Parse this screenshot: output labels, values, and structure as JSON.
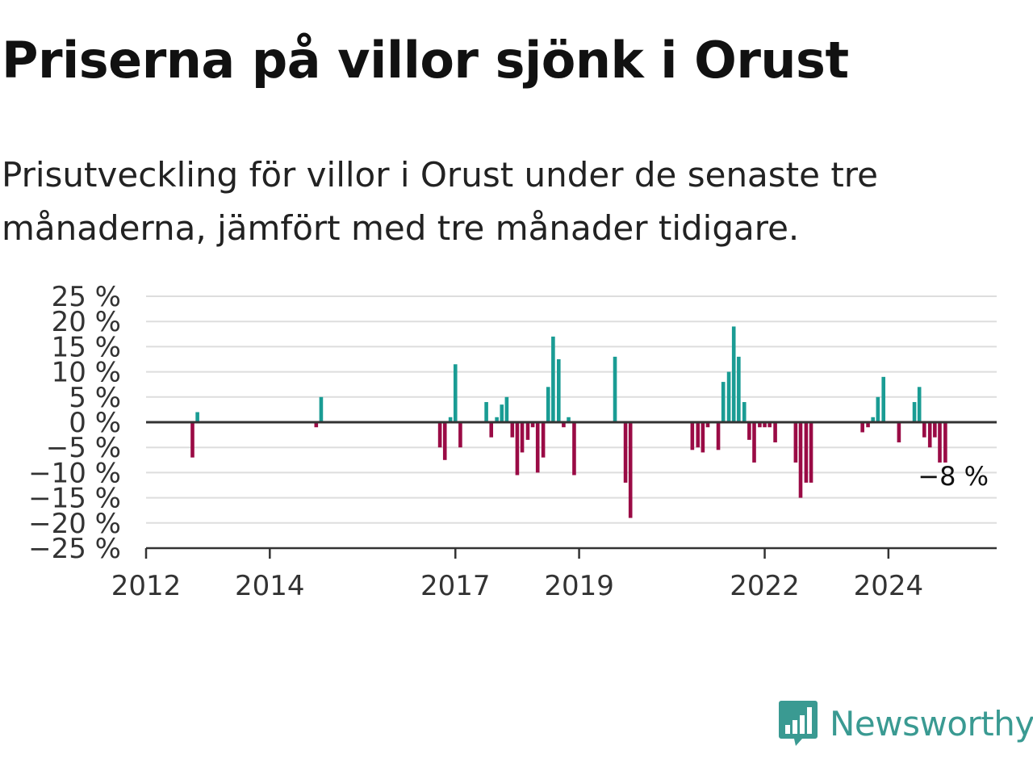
{
  "header": {
    "title": "Priserna på villor sjönk i Orust",
    "subtitle": "Prisutveckling för villor i Orust under de senaste tre månaderna, jämfört med tre månader tidigare."
  },
  "brand": {
    "name": "Newsworthy",
    "logo_icon": "bar-chart-speech-bubble-icon"
  },
  "colors": {
    "positive": "#1a9c94",
    "negative": "#9a0b45",
    "grid": "#dddddd",
    "axis": "#333333"
  },
  "chart_data": {
    "type": "bar",
    "title": "Priserna på villor sjönk i Orust",
    "subtitle": "Prisutveckling för villor i Orust under de senaste tre månaderna, jämfört med tre månader tidigare.",
    "xlabel": "",
    "ylabel": "",
    "x_unit": "year",
    "xlim": [
      2012,
      2025.75
    ],
    "ylim": [
      -25,
      25
    ],
    "yticks": [
      25,
      20,
      15,
      10,
      5,
      0,
      -5,
      -10,
      -15,
      -20,
      -25
    ],
    "ytick_labels": [
      "25 %",
      "20 %",
      "15 %",
      "10 %",
      "5 %",
      "0 %",
      "−5 %",
      "−10 %",
      "−15 %",
      "−20 %",
      "−25 %"
    ],
    "xticks": [
      2012,
      2014,
      2017,
      2019,
      2022,
      2024
    ],
    "xtick_labels": [
      "2012",
      "2014",
      "2017",
      "2019",
      "2022",
      "2024"
    ],
    "grid": true,
    "annotation": {
      "text": "−8 %",
      "x": 2025.0,
      "y": -8
    },
    "x": [
      2012.75,
      2012.83,
      2014.75,
      2014.83,
      2016.75,
      2016.83,
      2016.92,
      2017.0,
      2017.08,
      2017.5,
      2017.58,
      2017.67,
      2017.75,
      2017.83,
      2017.92,
      2018.0,
      2018.08,
      2018.17,
      2018.25,
      2018.33,
      2018.42,
      2018.5,
      2018.58,
      2018.67,
      2018.75,
      2018.83,
      2018.92,
      2019.58,
      2019.75,
      2019.83,
      2020.83,
      2020.92,
      2021.0,
      2021.08,
      2021.25,
      2021.33,
      2021.42,
      2021.5,
      2021.58,
      2021.67,
      2021.75,
      2021.83,
      2021.92,
      2022.0,
      2022.08,
      2022.17,
      2022.5,
      2022.58,
      2022.67,
      2022.75,
      2023.58,
      2023.67,
      2023.75,
      2023.83,
      2023.92,
      2024.17,
      2024.42,
      2024.5,
      2024.58,
      2024.67,
      2024.75,
      2024.83,
      2024.92
    ],
    "values": [
      -7,
      2,
      -1,
      5,
      -5,
      -7.5,
      1,
      11.5,
      -5,
      4,
      -3,
      1,
      3.5,
      5,
      -3,
      -10.5,
      -6,
      -3.5,
      -1,
      -10,
      -7,
      7,
      17,
      12.5,
      -1,
      1,
      -10.5,
      13,
      -12,
      -19,
      -5.5,
      -5,
      -6,
      -1,
      -5.5,
      8,
      10,
      19,
      13,
      4,
      -3.5,
      -8,
      -1,
      -1,
      -1,
      -4,
      -8,
      -15,
      -12,
      -12,
      -2,
      -1,
      1,
      5,
      9,
      -4,
      4,
      7,
      -3,
      -5,
      -3,
      -8,
      -8
    ]
  }
}
